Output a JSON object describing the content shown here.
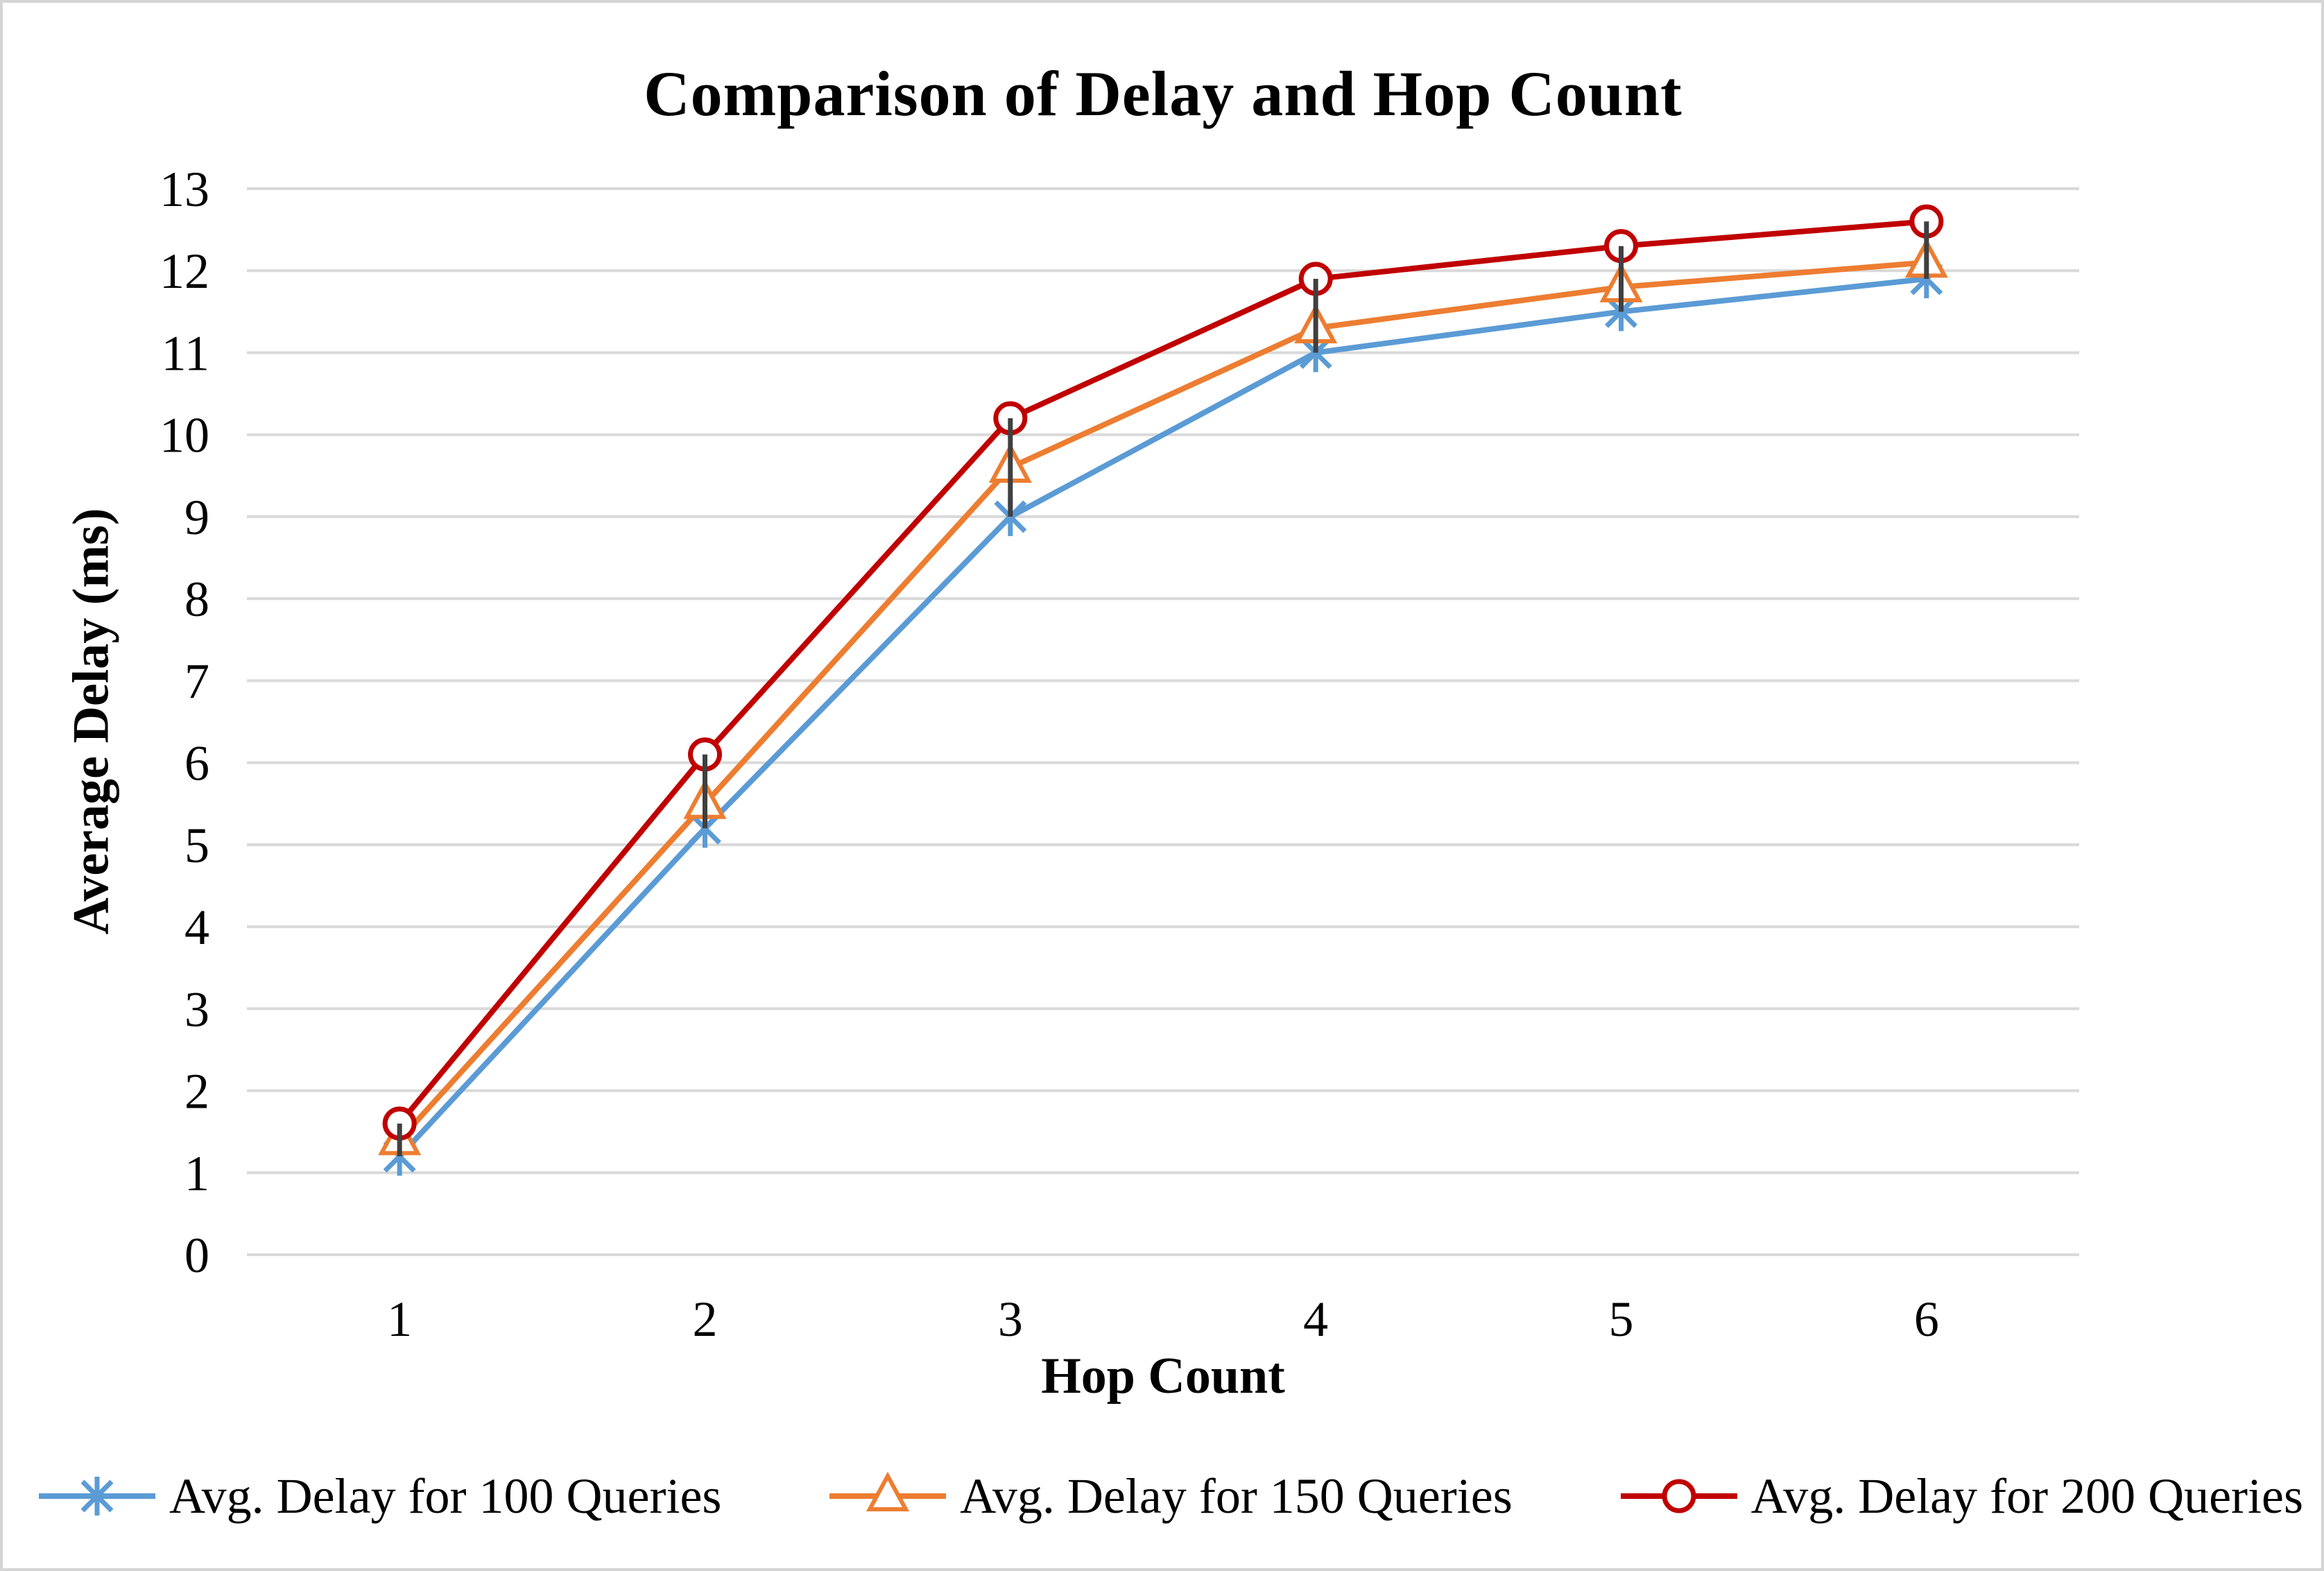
{
  "chart_data": {
    "type": "line",
    "title": "Comparison of Delay and Hop Count",
    "xlabel": "Hop Count",
    "ylabel": "Average Delay (ms)",
    "categories": [
      "1",
      "2",
      "3",
      "4",
      "5",
      "6"
    ],
    "y_ticks": [
      0,
      1,
      2,
      3,
      4,
      5,
      6,
      7,
      8,
      9,
      10,
      11,
      12,
      13
    ],
    "ylim": [
      0,
      13
    ],
    "grid": "horizontal-only",
    "legend_position": "bottom",
    "high_low_lines": true,
    "series": [
      {
        "name": "Avg. Delay for 100 Queries",
        "marker": "asterisk",
        "color": "#5B9BD5",
        "values": [
          1.2,
          5.2,
          9.0,
          11.0,
          11.5,
          11.9
        ]
      },
      {
        "name": "Avg. Delay for 150 Queries",
        "marker": "triangle",
        "color": "#ED7D31",
        "values": [
          1.4,
          5.5,
          9.6,
          11.3,
          11.8,
          12.1
        ]
      },
      {
        "name": "Avg. Delay for 200 Queries",
        "marker": "circle",
        "color": "#C00000",
        "values": [
          1.6,
          6.1,
          10.2,
          11.9,
          12.3,
          12.6
        ]
      }
    ],
    "colors": {
      "gridline": "#D9D9D9",
      "high_low": "#404040",
      "text": "#000000",
      "canvas_border": "#D5D5D5"
    }
  }
}
